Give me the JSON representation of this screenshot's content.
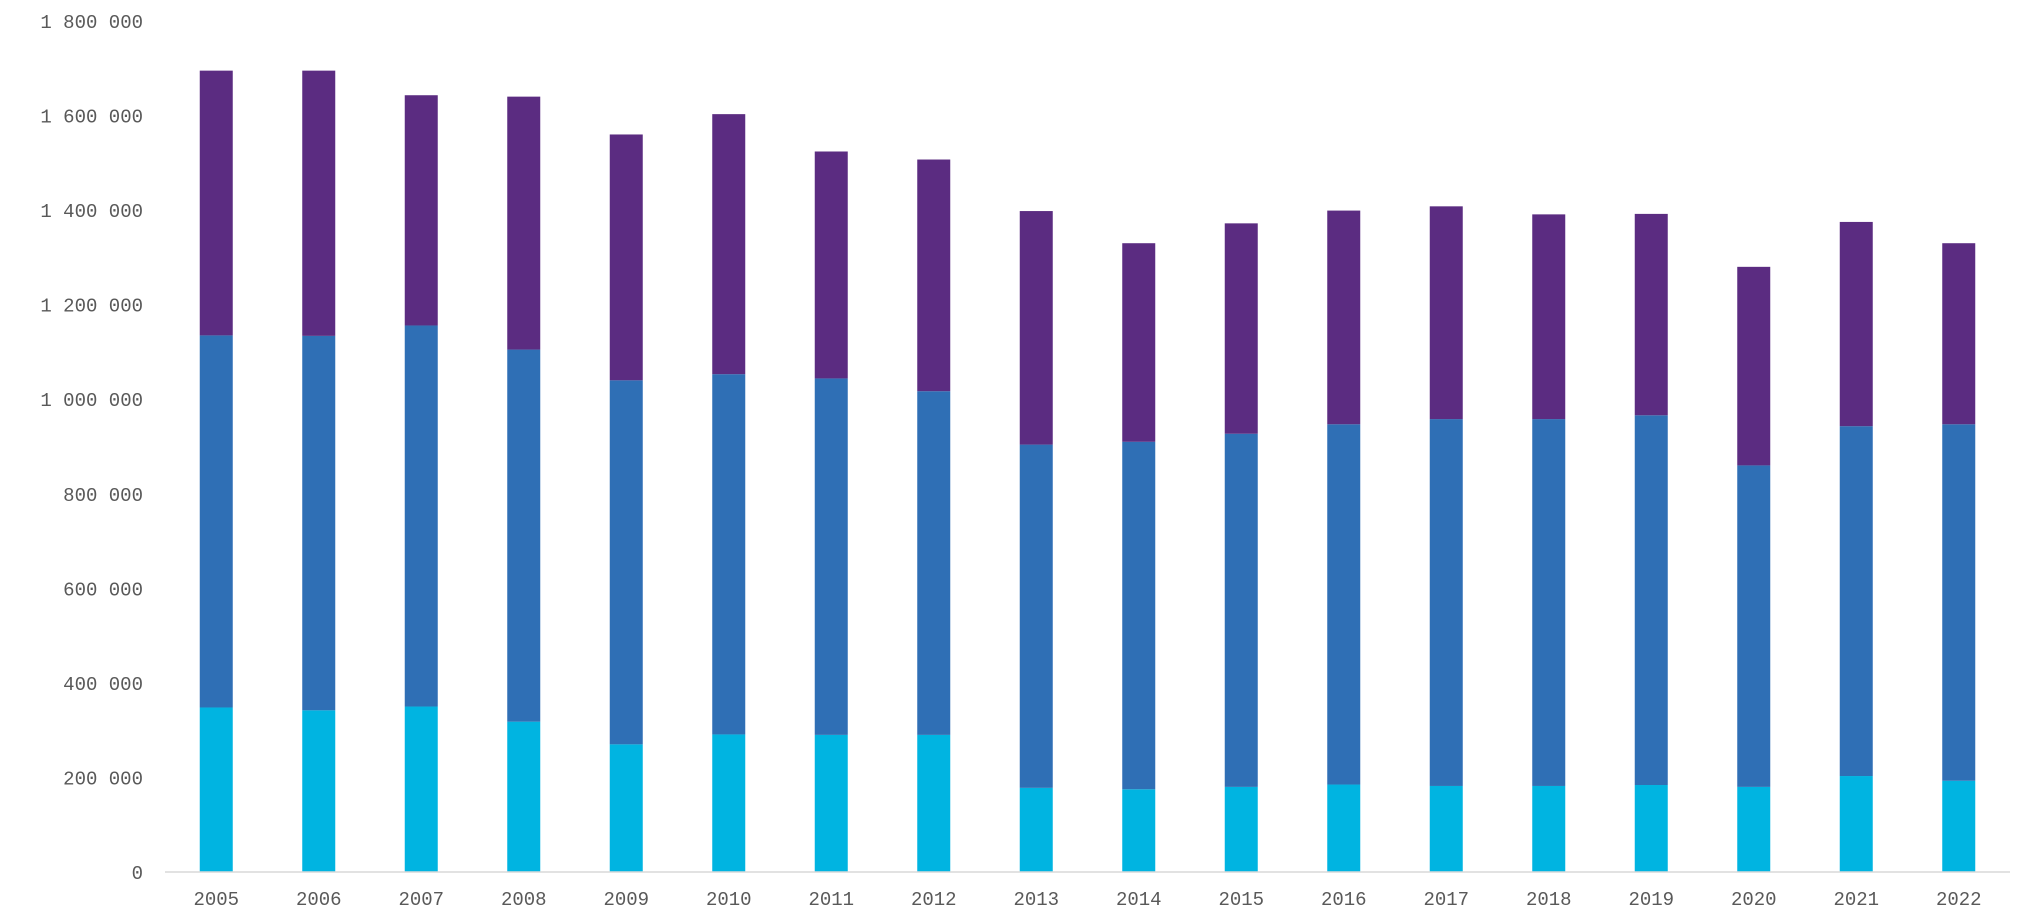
{
  "chart_data": {
    "type": "bar",
    "stacked": true,
    "title": "",
    "xlabel": "",
    "ylabel": "",
    "ylim": [
      0,
      1800000
    ],
    "yticks": [
      0,
      200000,
      400000,
      600000,
      800000,
      1000000,
      1200000,
      1400000,
      1600000,
      1800000
    ],
    "ytick_labels": [
      "0",
      "200 000",
      "400 000",
      "600 000",
      "800 000",
      "1 000 000",
      "1 200 000",
      "1 400 000",
      "1 600 000",
      "1 800 000"
    ],
    "grid": false,
    "legend": "none",
    "categories": [
      "2005",
      "2006",
      "2007",
      "2008",
      "2009",
      "2010",
      "2011",
      "2012",
      "2013",
      "2014",
      "2015",
      "2016",
      "2017",
      "2018",
      "2019",
      "2020",
      "2021",
      "2022"
    ],
    "series": [
      {
        "color": "#00b4e1",
        "values": [
          348000,
          342000,
          350000,
          318000,
          270000,
          291000,
          290000,
          290000,
          178000,
          175000,
          180000,
          185000,
          182000,
          182000,
          184000,
          180000,
          203000,
          193000
        ]
      },
      {
        "color": "#2f6fb5",
        "values": [
          787000,
          792000,
          806000,
          787000,
          770000,
          762000,
          754000,
          727000,
          726000,
          735000,
          747000,
          762000,
          776000,
          776000,
          782000,
          680000,
          740000,
          754000
        ]
      },
      {
        "color": "#5b2c81",
        "values": [
          560000,
          561000,
          487000,
          535000,
          520000,
          550000,
          480000,
          490000,
          494000,
          420000,
          445000,
          452000,
          450000,
          433000,
          426000,
          420000,
          432000,
          383000
        ]
      }
    ]
  }
}
